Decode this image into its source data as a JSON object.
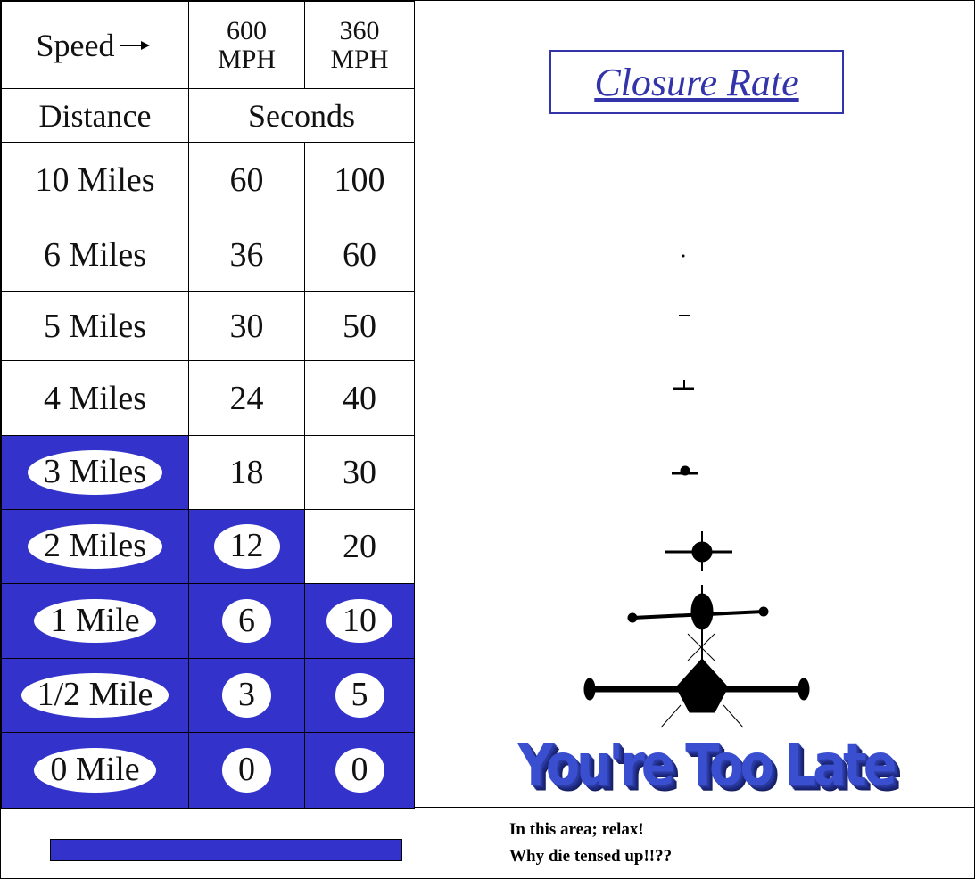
{
  "table": {
    "header": {
      "speed_label": "Speed",
      "speeds": [
        "600 MPH",
        "360 MPH"
      ],
      "distance_label": "Distance",
      "seconds_label": "Seconds"
    },
    "rows": [
      {
        "distance": "10 Miles",
        "seconds": [
          60,
          100
        ],
        "highlighted": [
          false,
          false,
          false
        ]
      },
      {
        "distance": "6 Miles",
        "seconds": [
          36,
          60
        ],
        "highlighted": [
          false,
          false,
          false
        ]
      },
      {
        "distance": "5 Miles",
        "seconds": [
          30,
          50
        ],
        "highlighted": [
          false,
          false,
          false
        ]
      },
      {
        "distance": "4 Miles",
        "seconds": [
          24,
          40
        ],
        "highlighted": [
          false,
          false,
          false
        ]
      },
      {
        "distance": "3 Miles",
        "seconds": [
          18,
          30
        ],
        "highlighted": [
          true,
          false,
          false
        ]
      },
      {
        "distance": "2 Miles",
        "seconds": [
          12,
          20
        ],
        "highlighted": [
          true,
          true,
          false
        ]
      },
      {
        "distance": "1 Mile",
        "seconds": [
          6,
          10
        ],
        "highlighted": [
          true,
          true,
          true
        ]
      },
      {
        "distance": "1/2 Mile",
        "seconds": [
          3,
          5
        ],
        "highlighted": [
          true,
          true,
          true
        ]
      },
      {
        "distance": "0 Mile",
        "seconds": [
          0,
          0
        ],
        "highlighted": [
          true,
          true,
          true
        ]
      }
    ]
  },
  "title": "Closure Rate",
  "banner": "You're Too Late",
  "note": [
    "In this area; relax!",
    "Why die tensed up!!??"
  ]
}
